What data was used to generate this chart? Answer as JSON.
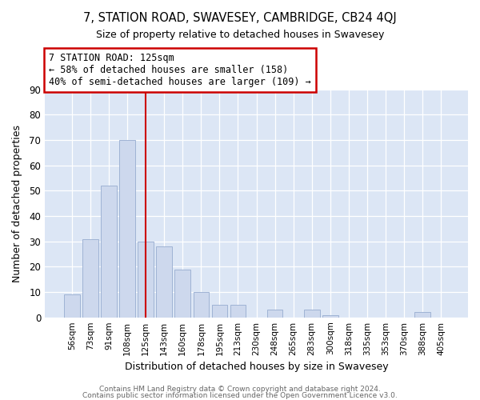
{
  "title": "7, STATION ROAD, SWAVESEY, CAMBRIDGE, CB24 4QJ",
  "subtitle": "Size of property relative to detached houses in Swavesey",
  "xlabel": "Distribution of detached houses by size in Swavesey",
  "ylabel": "Number of detached properties",
  "bar_labels": [
    "56sqm",
    "73sqm",
    "91sqm",
    "108sqm",
    "125sqm",
    "143sqm",
    "160sqm",
    "178sqm",
    "195sqm",
    "213sqm",
    "230sqm",
    "248sqm",
    "265sqm",
    "283sqm",
    "300sqm",
    "318sqm",
    "335sqm",
    "353sqm",
    "370sqm",
    "388sqm",
    "405sqm"
  ],
  "bar_values": [
    9,
    31,
    52,
    70,
    30,
    28,
    19,
    10,
    5,
    5,
    0,
    3,
    0,
    3,
    1,
    0,
    0,
    0,
    0,
    2,
    0
  ],
  "bar_color": "#cdd8ed",
  "bar_edge_color": "#9fb3d4",
  "vline_x": 4,
  "vline_color": "#cc0000",
  "annotation_title": "7 STATION ROAD: 125sqm",
  "annotation_line1": "← 58% of detached houses are smaller (158)",
  "annotation_line2": "40% of semi-detached houses are larger (109) →",
  "annotation_box_color": "#cc0000",
  "ylim": [
    0,
    90
  ],
  "yticks": [
    0,
    10,
    20,
    30,
    40,
    50,
    60,
    70,
    80,
    90
  ],
  "footer1": "Contains HM Land Registry data © Crown copyright and database right 2024.",
  "footer2": "Contains public sector information licensed under the Open Government Licence v3.0.",
  "fig_bg_color": "#ffffff",
  "plot_bg_color": "#dce6f5"
}
